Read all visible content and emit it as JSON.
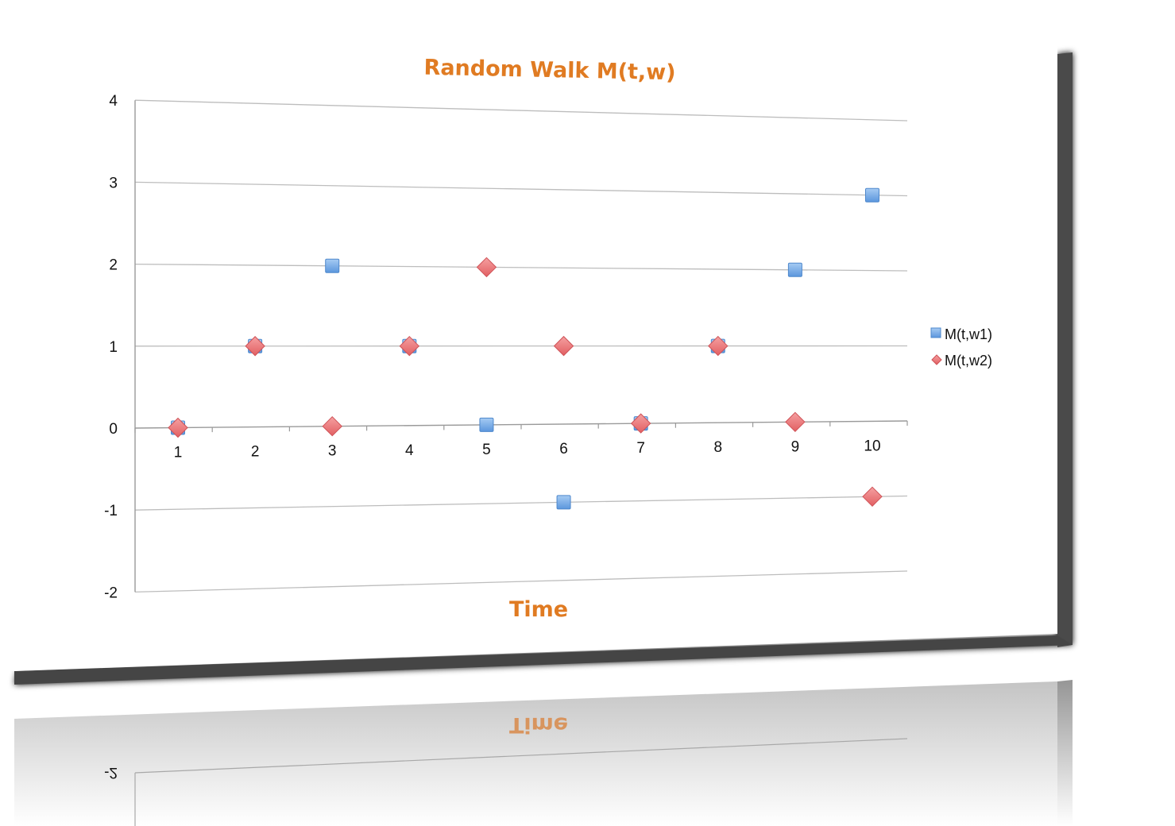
{
  "colors": {
    "title": "#E07B22",
    "series_square": "#6FA8E8",
    "series_square_edge": "#4E88CC",
    "series_diamond": "#EC7274",
    "series_diamond_edge": "#CF5257",
    "gridline": "#BDBDBD",
    "axis": "#9A9A9A",
    "frame_shadow": "#3A3A3A"
  },
  "chart_data": {
    "type": "scatter",
    "title": "Random Walk M(t,w)",
    "xlabel": "Time",
    "ylabel": "",
    "x": [
      1,
      2,
      3,
      4,
      5,
      6,
      7,
      8,
      9,
      10
    ],
    "x_tick_labels": [
      "1",
      "2",
      "3",
      "4",
      "5",
      "6",
      "7",
      "8",
      "9",
      "10"
    ],
    "y_tick_labels": [
      "4",
      "3",
      "2",
      "1",
      "0",
      "-1",
      "-2"
    ],
    "ylim": [
      -2,
      4
    ],
    "grid": true,
    "legend_position": "right",
    "series": [
      {
        "name": "M(t,w1)",
        "marker": "square",
        "values": [
          0,
          1,
          2,
          1,
          0,
          -1,
          0,
          1,
          2,
          3
        ]
      },
      {
        "name": "M(t,w2)",
        "marker": "diamond",
        "values": [
          0,
          1,
          0,
          1,
          2,
          1,
          0,
          1,
          0,
          -1
        ]
      }
    ],
    "reflection_labels": {
      "axis_title": "Time",
      "tick": "-2"
    }
  }
}
